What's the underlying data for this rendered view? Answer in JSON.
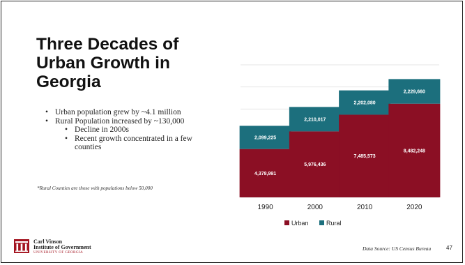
{
  "slide": {
    "title": "Three Decades of Urban Growth in Georgia",
    "bullets": [
      "Urban population grew by ~4.1 million",
      "Rural Population increased by ~130,000"
    ],
    "sub_bullets": [
      "Decline in 2000s",
      "Recent growth concentrated in a few counties"
    ],
    "footnote": "*Rural Counties are those with populations below 50,000",
    "logo": {
      "line1": "Carl Vinson",
      "line2": "Institute of Government",
      "line3": "UNIVERSITY OF GEORGIA"
    },
    "source": "Data Source: US Census Bureau",
    "page_number": "47",
    "bullet_glyph": "•"
  },
  "colors": {
    "urban": "#8b0f24",
    "rural": "#1c6f7d",
    "gridline": "#e6e6e6",
    "logo_red": "#a3131f"
  },
  "chart_data": {
    "type": "bar",
    "stacked": true,
    "categories": [
      "1990",
      "2000",
      "2010",
      "2020"
    ],
    "series": [
      {
        "name": "Urban",
        "values": [
          4378991,
          5976436,
          7485573,
          8482248
        ],
        "labels": [
          "4,378,991",
          "5,976,436",
          "7,485,573",
          "8,482,248"
        ],
        "color": "#8b0f24"
      },
      {
        "name": "Rural",
        "values": [
          2099225,
          2210017,
          2202080,
          2229660
        ],
        "labels": [
          "2,099,225",
          "2,210,017",
          "2,202,080",
          "2,229,660"
        ],
        "color": "#1c6f7d"
      }
    ],
    "ylim": [
      0,
      12000000
    ],
    "grid": true,
    "legend_position": "bottom"
  }
}
